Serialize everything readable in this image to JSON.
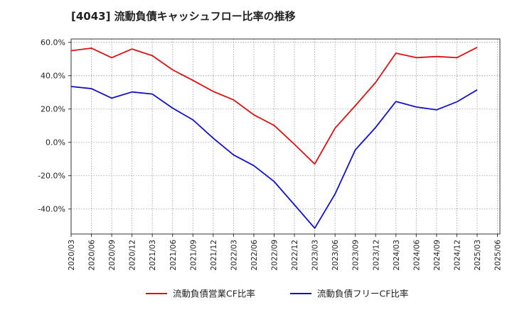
{
  "chart_data": {
    "type": "line",
    "title": "[4043]  流動負債キャッシュフロー比率の推移",
    "xlabel": "",
    "ylabel": "",
    "ylim": [
      -55,
      62
    ],
    "grid": true,
    "legend_placement": "bottom",
    "y_ticks": [
      "60.0%",
      "40.0%",
      "20.0%",
      "0.0%",
      "-20.0%",
      "-40.0%"
    ],
    "y_tick_values": [
      60,
      40,
      20,
      0,
      -20,
      -40
    ],
    "categories": [
      "2020/03",
      "2020/06",
      "2020/09",
      "2020/12",
      "2021/03",
      "2021/06",
      "2021/09",
      "2021/12",
      "2022/03",
      "2022/06",
      "2022/09",
      "2022/12",
      "2023/03",
      "2023/06",
      "2023/09",
      "2023/12",
      "2024/03",
      "2024/06",
      "2024/09",
      "2024/12",
      "2025/03",
      "2025/06"
    ],
    "series": [
      {
        "name": "流動負債営業CF比率",
        "color": "#dd1111",
        "values": [
          55.0,
          56.5,
          50.8,
          56.0,
          52.0,
          43.5,
          37.2,
          30.5,
          25.5,
          16.5,
          10.2,
          -1.2,
          -13.0,
          8.5,
          22.0,
          36.0,
          53.5,
          50.8,
          51.5,
          50.8,
          57.0,
          null
        ]
      },
      {
        "name": "流動負債フリーCF比率",
        "color": "#1111cc",
        "values": [
          33.5,
          32.2,
          26.5,
          30.2,
          29.0,
          20.5,
          13.5,
          2.5,
          -7.5,
          -14.0,
          -23.5,
          -37.5,
          -51.5,
          -31.0,
          -4.5,
          9.0,
          24.5,
          21.2,
          19.5,
          24.3,
          31.5,
          null
        ]
      }
    ]
  }
}
